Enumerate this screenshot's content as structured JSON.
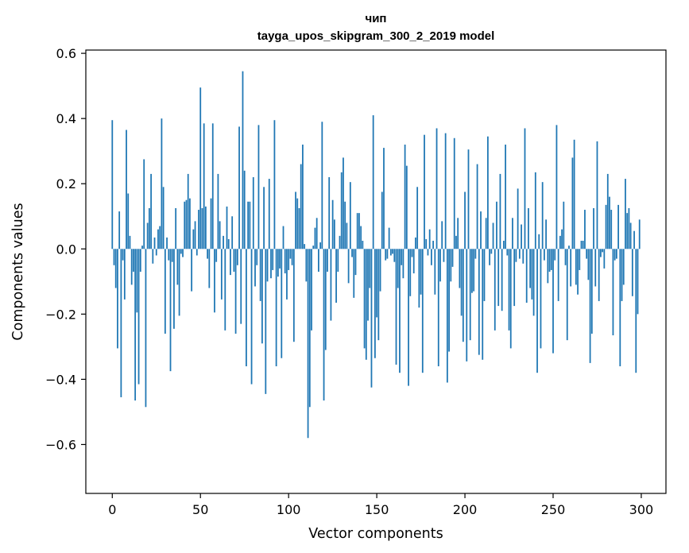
{
  "chart_data": {
    "type": "bar",
    "title_line1": "чип",
    "title_line2": "tayga_upos_skipgram_300_2_2019 model",
    "xlabel": "Vector components",
    "ylabel": "Components values",
    "xlim": [
      -15,
      314
    ],
    "ylim": [
      -0.75,
      0.61
    ],
    "xticks": [
      0,
      50,
      100,
      150,
      200,
      250,
      300
    ],
    "yticks": [
      -0.6,
      -0.4,
      -0.2,
      0.0,
      0.2,
      0.4,
      0.6
    ],
    "ytick_labels": [
      "−0.6",
      "−0.4",
      "−0.2",
      "0.0",
      "0.2",
      "0.4",
      "0.6"
    ],
    "bar_color": "#1f77b4",
    "grid": false,
    "values": [
      0.395,
      -0.05,
      -0.12,
      -0.305,
      0.115,
      -0.455,
      -0.035,
      -0.155,
      0.365,
      0.17,
      0.04,
      -0.11,
      -0.07,
      -0.465,
      -0.195,
      -0.415,
      -0.07,
      0.01,
      0.275,
      -0.485,
      0.08,
      0.125,
      0.23,
      -0.045,
      0.035,
      -0.02,
      0.06,
      0.07,
      0.4,
      0.19,
      -0.26,
      0.035,
      -0.035,
      -0.375,
      -0.04,
      -0.245,
      0.125,
      -0.11,
      -0.205,
      -0.015,
      -0.025,
      0.145,
      0.15,
      0.23,
      0.155,
      -0.13,
      0.06,
      0.085,
      -0.02,
      0.12,
      0.495,
      0.125,
      0.385,
      0.13,
      -0.03,
      -0.12,
      0.155,
      0.385,
      -0.195,
      -0.04,
      0.23,
      0.085,
      -0.155,
      0.04,
      -0.25,
      0.13,
      0.03,
      -0.08,
      0.1,
      -0.07,
      -0.26,
      -0.05,
      0.375,
      -0.23,
      0.545,
      0.24,
      -0.36,
      0.145,
      0.145,
      -0.415,
      0.22,
      -0.115,
      -0.05,
      0.38,
      -0.16,
      -0.29,
      0.19,
      -0.445,
      -0.1,
      0.215,
      -0.09,
      -0.065,
      0.395,
      -0.36,
      -0.085,
      -0.06,
      -0.335,
      0.07,
      -0.075,
      -0.155,
      -0.065,
      -0.03,
      -0.05,
      -0.285,
      0.175,
      0.155,
      0.125,
      0.26,
      0.32,
      0.015,
      -0.1,
      -0.58,
      -0.485,
      -0.25,
      0.01,
      0.065,
      0.095,
      -0.07,
      0.02,
      0.39,
      -0.465,
      -0.31,
      -0.07,
      0.22,
      -0.22,
      0.15,
      0.09,
      -0.165,
      -0.07,
      0.04,
      0.235,
      0.28,
      0.145,
      0.08,
      -0.105,
      0.205,
      -0.025,
      -0.15,
      -0.08,
      0.11,
      0.11,
      0.07,
      0.025,
      -0.305,
      -0.34,
      -0.22,
      -0.12,
      -0.425,
      0.41,
      -0.335,
      -0.21,
      -0.28,
      -0.13,
      0.175,
      0.31,
      -0.035,
      -0.03,
      0.065,
      -0.02,
      -0.015,
      -0.04,
      -0.355,
      -0.12,
      -0.38,
      -0.05,
      -0.09,
      0.32,
      0.255,
      -0.42,
      -0.145,
      -0.025,
      -0.075,
      0.035,
      0.19,
      -0.18,
      -0.14,
      -0.38,
      0.35,
      0.03,
      -0.02,
      0.06,
      -0.05,
      0.025,
      -0.14,
      0.37,
      -0.36,
      -0.1,
      0.085,
      -0.04,
      0.355,
      -0.41,
      -0.315,
      -0.1,
      -0.055,
      0.34,
      0.04,
      0.095,
      -0.12,
      -0.205,
      -0.285,
      0.175,
      -0.345,
      0.305,
      -0.28,
      -0.135,
      -0.13,
      -0.03,
      0.26,
      -0.325,
      0.115,
      -0.34,
      -0.16,
      0.095,
      0.345,
      -0.05,
      -0.015,
      0.08,
      -0.25,
      0.145,
      -0.175,
      0.23,
      -0.19,
      0.025,
      0.32,
      -0.02,
      -0.25,
      -0.305,
      0.095,
      -0.175,
      -0.04,
      0.185,
      -0.03,
      0.075,
      -0.045,
      0.37,
      -0.165,
      0.125,
      -0.12,
      -0.155,
      -0.205,
      0.235,
      -0.38,
      0.045,
      -0.305,
      0.205,
      -0.035,
      0.09,
      -0.105,
      -0.07,
      -0.065,
      -0.32,
      -0.035,
      0.38,
      -0.16,
      0.04,
      0.06,
      0.145,
      -0.05,
      -0.28,
      0.01,
      -0.115,
      0.28,
      0.335,
      -0.11,
      -0.14,
      -0.065,
      0.025,
      0.025,
      0.12,
      -0.03,
      -0.095,
      -0.35,
      -0.26,
      0.125,
      -0.115,
      0.33,
      -0.16,
      -0.025,
      -0.01,
      -0.06,
      0.135,
      0.23,
      0.16,
      0.12,
      -0.265,
      -0.035,
      -0.03,
      0.135,
      -0.36,
      -0.16,
      -0.11,
      0.215,
      0.11,
      0.125,
      0.08,
      -0.145,
      0.055,
      -0.38,
      -0.2,
      0.09
    ]
  }
}
